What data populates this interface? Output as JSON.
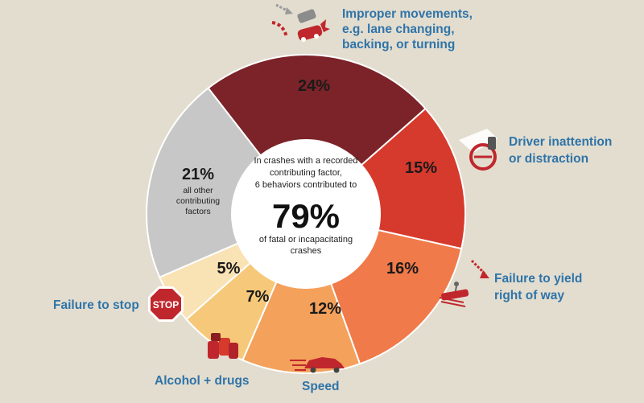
{
  "chart_data": {
    "type": "pie",
    "variant": "donut",
    "center": {
      "lines": [
        "In crashes with a recorded",
        "contributing factor,",
        "6 behaviors contributed to"
      ],
      "big": "79%",
      "lines_after": [
        "of fatal or incapacitating",
        "crashes"
      ]
    },
    "slices": [
      {
        "category": "Improper movements, e.g. lane changing, backing, or turning",
        "value": 24,
        "label": "24%",
        "color": "#7b2328",
        "icon": "car-turning-icon"
      },
      {
        "category": "Driver inattention or distraction",
        "value": 15,
        "label": "15%",
        "color": "#d63a2c",
        "icon": "phone-distraction-icon"
      },
      {
        "category": "Failure to yield right of way",
        "value": 16,
        "label": "16%",
        "color": "#f07a4a",
        "icon": "pedestrian-crosswalk-icon"
      },
      {
        "category": "Speed",
        "value": 12,
        "label": "12%",
        "color": "#f4a15c",
        "icon": "speeding-car-icon"
      },
      {
        "category": "Alcohol + drugs",
        "value": 7,
        "label": "7%",
        "color": "#f6c97a",
        "icon": "cans-icon"
      },
      {
        "category": "Failure to stop",
        "value": 5,
        "label": "5%",
        "color": "#f9e2b4",
        "icon": "stop-sign-icon"
      },
      {
        "category": "all other contributing factors",
        "value": 21,
        "label": "21%",
        "color": "#c7c7c7"
      }
    ],
    "external_labels": {
      "improper": [
        "Improper movements,",
        "e.g. lane changing,",
        "backing, or turning"
      ],
      "inattention": [
        "Driver inattention",
        "or distraction"
      ],
      "yield": [
        "Failure to yield",
        "right of way"
      ],
      "speed": [
        "Speed"
      ],
      "alcohol": [
        "Alcohol + drugs"
      ],
      "stop": [
        "Failure to stop"
      ]
    },
    "other_sublabel": [
      "all other",
      "contributing",
      "factors"
    ],
    "stop_sign_text": "STOP"
  }
}
